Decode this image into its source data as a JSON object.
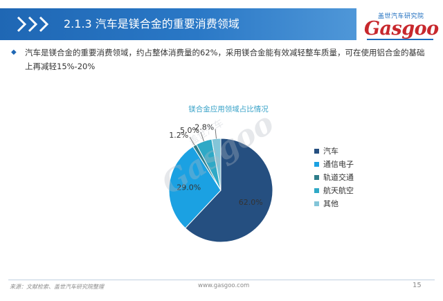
{
  "header": {
    "title": "2.1.3 汽车是镁合金的重要消费领域",
    "brand_cn": "盖世汽车研究院",
    "brand_logo": "Gasgoo"
  },
  "bullet": {
    "icon": "diamond-bullet-icon",
    "text": "汽车是镁合金的重要消费领域，约占整体消费量的62%，采用镁合金能有效减轻整车质量，可在使用铝合金的基础上再减轻15%-20%"
  },
  "watermark": {
    "logo": "Gasgoo",
    "cn": "盖世汽车"
  },
  "chart_data": {
    "type": "pie",
    "title": "镁合金应用领域占比情况",
    "categories": [
      "汽车",
      "通信电子",
      "轨道交通",
      "航天航空",
      "其他"
    ],
    "values": [
      62.0,
      29.0,
      1.2,
      5.0,
      2.8
    ],
    "data_labels": [
      "62.0%",
      "29.0%",
      "1.2%",
      "5.0%",
      "2.8%"
    ],
    "colors": [
      "#254f80",
      "#1ba1e2",
      "#2e7d8a",
      "#2fa9c6",
      "#83c5d8"
    ],
    "start_angle_deg": 0,
    "direction": "clockwise",
    "legend_position": "right"
  },
  "footer": {
    "source": "来源：文献检索、盖世汽车研究院整理",
    "url": "www.gasgoo.com",
    "page_number": "15"
  }
}
